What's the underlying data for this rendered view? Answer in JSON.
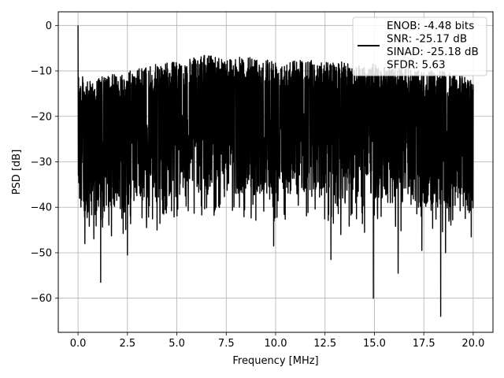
{
  "chart_data": {
    "type": "line",
    "xlabel": "Frequency [MHz]",
    "ylabel": "PSD [dB]",
    "xlim": [
      -1.0,
      21.0
    ],
    "ylim": [
      -67.5,
      3.0
    ],
    "xticks": [
      0.0,
      2.5,
      5.0,
      7.5,
      10.0,
      12.5,
      15.0,
      17.5,
      20.0
    ],
    "xtick_labels": [
      "0.0",
      "2.5",
      "5.0",
      "7.5",
      "10.0",
      "12.5",
      "15.0",
      "17.5",
      "20.0"
    ],
    "yticks": [
      0,
      -10,
      -20,
      -30,
      -40,
      -50,
      -60
    ],
    "ytick_labels": [
      "0",
      "−10",
      "−20",
      "−30",
      "−40",
      "−50",
      "−60"
    ],
    "grid": true,
    "legend_position": "top-right",
    "series": [
      {
        "name": "ENOB: -4.48 bits\nSNR: -25.17 dB\nSINAD: -25.18 dB\nSFDR: 5.63",
        "color": "#000000",
        "x_range": [
          0.0,
          20.0
        ],
        "upper_envelope": [
          [
            0.0,
            0.0
          ],
          [
            0.06,
            -12.0
          ],
          [
            0.2,
            -11.0
          ],
          [
            0.5,
            -12.5
          ],
          [
            1.0,
            -11.5
          ],
          [
            1.5,
            -11.0
          ],
          [
            2.0,
            -10.5
          ],
          [
            2.5,
            -10.0
          ],
          [
            3.0,
            -9.5
          ],
          [
            3.5,
            -9.0
          ],
          [
            4.0,
            -8.5
          ],
          [
            4.5,
            -8.0
          ],
          [
            5.0,
            -8.0
          ],
          [
            5.5,
            -7.5
          ],
          [
            6.0,
            -7.0
          ],
          [
            6.5,
            -6.5
          ],
          [
            7.0,
            -6.5
          ],
          [
            7.5,
            -7.0
          ],
          [
            8.0,
            -7.0
          ],
          [
            8.5,
            -7.0
          ],
          [
            9.0,
            -7.0
          ],
          [
            9.5,
            -7.0
          ],
          [
            10.0,
            -7.5
          ],
          [
            10.5,
            -7.5
          ],
          [
            11.0,
            -7.5
          ],
          [
            11.5,
            -7.0
          ],
          [
            12.0,
            -8.0
          ],
          [
            12.5,
            -8.0
          ],
          [
            13.0,
            -8.0
          ],
          [
            13.5,
            -8.0
          ],
          [
            14.0,
            -8.5
          ],
          [
            14.5,
            -8.5
          ],
          [
            15.0,
            -8.5
          ],
          [
            15.5,
            -9.0
          ],
          [
            16.0,
            -9.0
          ],
          [
            16.5,
            -9.5
          ],
          [
            17.0,
            -9.5
          ],
          [
            17.5,
            -10.0
          ],
          [
            18.0,
            -10.0
          ],
          [
            18.5,
            -10.0
          ],
          [
            19.0,
            -10.5
          ],
          [
            19.5,
            -11.0
          ],
          [
            20.0,
            -11.5
          ]
        ],
        "dips": [
          [
            0.35,
            -48.0
          ],
          [
            1.15,
            -56.5
          ],
          [
            2.5,
            -50.5
          ],
          [
            4.0,
            -45.0
          ],
          [
            6.9,
            -41.0
          ],
          [
            9.9,
            -48.5
          ],
          [
            12.8,
            -51.5
          ],
          [
            13.3,
            -46.0
          ],
          [
            14.5,
            -45.5
          ],
          [
            14.95,
            -60.0
          ],
          [
            16.2,
            -54.5
          ],
          [
            17.4,
            -49.5
          ],
          [
            18.35,
            -64.0
          ],
          [
            18.6,
            -50.0
          ],
          [
            19.9,
            -46.5
          ]
        ]
      }
    ]
  }
}
